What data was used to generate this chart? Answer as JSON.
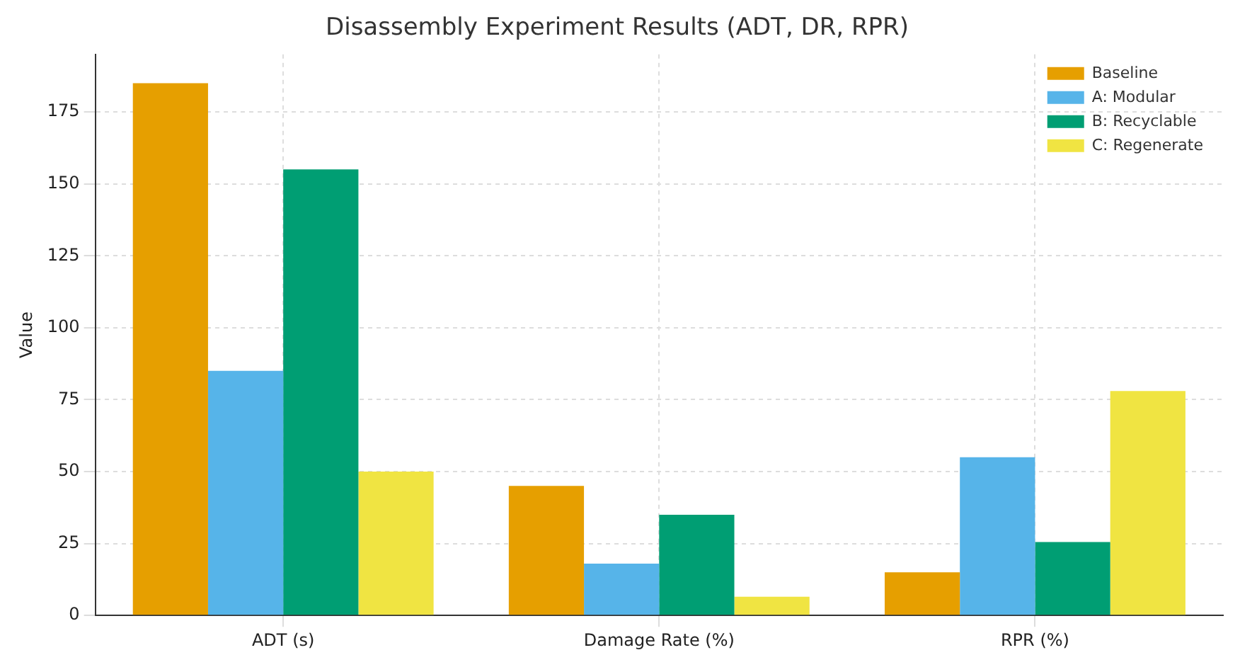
{
  "chart_data": {
    "type": "bar",
    "title": "Disassembly Experiment Results (ADT, DR, RPR)",
    "ylabel": "Value",
    "categories": [
      "ADT (s)",
      "Damage Rate (%)",
      "RPR (%)"
    ],
    "series": [
      {
        "name": "Baseline",
        "color": "#e69f00",
        "values": [
          185,
          45,
          15
        ]
      },
      {
        "name": "A: Modular",
        "color": "#56b4e9",
        "values": [
          85,
          18,
          55
        ]
      },
      {
        "name": "B: Recyclable",
        "color": "#009e73",
        "values": [
          155,
          35,
          25.5
        ]
      },
      {
        "name": "C: Regenerate",
        "color": "#f0e442",
        "values": [
          50,
          6.5,
          78
        ]
      }
    ],
    "ylim": [
      0,
      195
    ],
    "yticks": [
      0,
      25,
      50,
      75,
      100,
      125,
      150,
      175
    ],
    "grid": true,
    "legend": "top right"
  }
}
